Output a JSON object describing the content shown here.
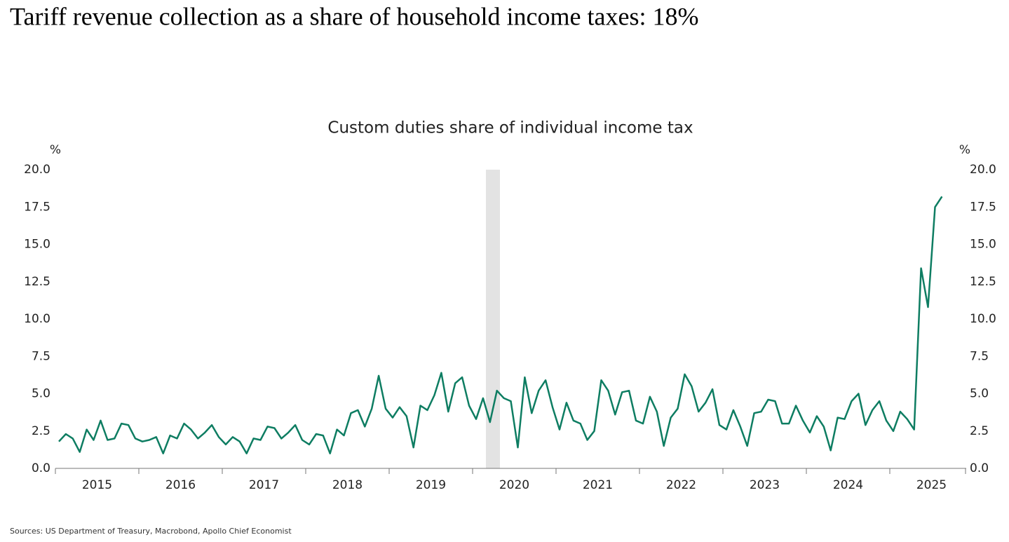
{
  "title": "Tariff revenue collection as a share of household income taxes: 18%",
  "source": "Sources: US Department of Treasury, Macrobond, Apollo Chief Economist",
  "chart_data": {
    "type": "line",
    "title": "Custom duties share of individual income tax",
    "y_label": "%",
    "y2_label": "%",
    "categories": [
      null,
      null,
      null,
      null,
      null,
      null,
      "2015",
      null,
      null,
      null,
      null,
      null,
      null,
      null,
      null,
      null,
      null,
      null,
      "2016",
      null,
      null,
      null,
      null,
      null,
      null,
      null,
      null,
      null,
      null,
      null,
      "2017",
      null,
      null,
      null,
      null,
      null,
      null,
      null,
      null,
      null,
      null,
      null,
      "2018",
      null,
      null,
      null,
      null,
      null,
      null,
      null,
      null,
      null,
      null,
      null,
      "2019",
      null,
      null,
      null,
      null,
      null,
      null,
      null,
      null,
      null,
      null,
      null,
      "2020",
      null,
      null,
      null,
      null,
      null,
      null,
      null,
      null,
      null,
      null,
      null,
      "2021",
      null,
      null,
      null,
      null,
      null,
      null,
      null,
      null,
      null,
      null,
      null,
      "2022",
      null,
      null,
      null,
      null,
      null,
      null,
      null,
      null,
      null,
      null,
      null,
      "2023",
      null,
      null,
      null,
      null,
      null,
      null,
      null,
      null,
      null,
      null,
      null,
      "2024",
      null,
      null,
      null,
      null,
      null,
      null,
      null,
      null,
      null,
      null,
      null,
      "2025",
      null
    ],
    "values": [
      1.8,
      2.3,
      2.0,
      1.1,
      2.6,
      1.9,
      3.2,
      1.9,
      2.0,
      3.0,
      2.9,
      2.0,
      1.8,
      1.9,
      2.1,
      1.0,
      2.2,
      2.0,
      3.0,
      2.6,
      2.0,
      2.4,
      2.9,
      2.1,
      1.6,
      2.1,
      1.8,
      1.0,
      2.0,
      1.9,
      2.8,
      2.7,
      2.0,
      2.4,
      2.9,
      1.9,
      1.6,
      2.3,
      2.2,
      1.0,
      2.6,
      2.2,
      3.7,
      3.9,
      2.8,
      4.0,
      6.2,
      4.0,
      3.4,
      4.1,
      3.5,
      1.4,
      4.2,
      3.9,
      4.9,
      6.4,
      3.8,
      5.7,
      6.1,
      4.2,
      3.3,
      4.7,
      3.1,
      5.2,
      4.7,
      4.5,
      1.4,
      6.1,
      3.7,
      5.2,
      5.9,
      4.1,
      2.6,
      4.4,
      3.2,
      3.0,
      1.9,
      2.5,
      5.9,
      5.2,
      3.6,
      5.1,
      5.2,
      3.2,
      3.0,
      4.8,
      3.8,
      1.5,
      3.4,
      4.0,
      6.3,
      5.5,
      3.8,
      4.4,
      5.3,
      2.9,
      2.6,
      3.9,
      2.8,
      1.5,
      3.7,
      3.8,
      4.6,
      4.5,
      3.0,
      3.0,
      4.2,
      3.2,
      2.4,
      3.5,
      2.8,
      1.2,
      3.4,
      3.3,
      4.5,
      5.0,
      2.9,
      3.9,
      4.5,
      3.2,
      2.5,
      3.8,
      3.3,
      2.6,
      13.4,
      10.8,
      17.5,
      18.2
    ],
    "color": "#0e7d62",
    "ylim": [
      0,
      20
    ],
    "yticks": [
      {
        "value": 0,
        "label": "0.0"
      },
      {
        "value": 2.5,
        "label": "2.5"
      },
      {
        "value": 5,
        "label": "5.0"
      },
      {
        "value": 7.5,
        "label": "7.5"
      },
      {
        "value": 10,
        "label": "10.0"
      },
      {
        "value": 12.5,
        "label": "12.5"
      },
      {
        "value": 15,
        "label": "15.0"
      },
      {
        "value": 17.5,
        "label": "17.5"
      },
      {
        "value": 20,
        "label": "20.0"
      }
    ],
    "y2lim": [
      0,
      20
    ],
    "y2ticks": [
      {
        "value": 0,
        "label": "0.0"
      },
      {
        "value": 2.5,
        "label": "2.5"
      },
      {
        "value": 5,
        "label": "5.0"
      },
      {
        "value": 7.5,
        "label": "7.5"
      },
      {
        "value": 10,
        "label": "10.0"
      },
      {
        "value": 12.5,
        "label": "12.5"
      },
      {
        "value": 15,
        "label": "15.0"
      },
      {
        "value": 17.5,
        "label": "17.5"
      },
      {
        "value": 20,
        "label": "20.0"
      }
    ],
    "grid": false
  }
}
